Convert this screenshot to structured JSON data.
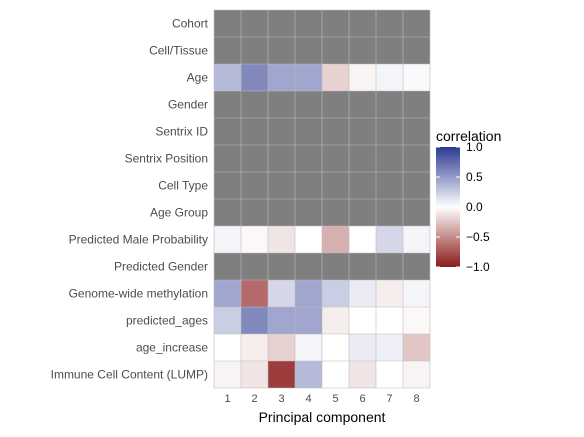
{
  "chart_data": {
    "type": "heatmap",
    "x_title": "Principal component",
    "x_ticks": [
      "1",
      "2",
      "3",
      "4",
      "5",
      "6",
      "7",
      "8"
    ],
    "y_labels": [
      "Cohort",
      "Cell/Tissue",
      "Age",
      "Gender",
      "Sentrix ID",
      "Sentrix Position",
      "Cell Type",
      "Age Group",
      "Predicted Male Probability",
      "Predicted Gender",
      "Genome-wide methylation",
      "predicted_ages",
      "age_increase",
      "Immune Cell Content (LUMP)"
    ],
    "values": [
      [
        null,
        null,
        null,
        null,
        null,
        null,
        null,
        null
      ],
      [
        null,
        null,
        null,
        null,
        null,
        null,
        null,
        null
      ],
      [
        0.35,
        0.6,
        0.45,
        0.45,
        -0.2,
        -0.05,
        0.05,
        0.03
      ],
      [
        null,
        null,
        null,
        null,
        null,
        null,
        null,
        null
      ],
      [
        null,
        null,
        null,
        null,
        null,
        null,
        null,
        null
      ],
      [
        null,
        null,
        null,
        null,
        null,
        null,
        null,
        null
      ],
      [
        null,
        null,
        null,
        null,
        null,
        null,
        null,
        null
      ],
      [
        null,
        null,
        null,
        null,
        null,
        null,
        null,
        null
      ],
      [
        0.05,
        -0.03,
        -0.12,
        0.0,
        -0.35,
        0.0,
        0.2,
        0.05
      ],
      [
        null,
        null,
        null,
        null,
        null,
        null,
        null,
        null
      ],
      [
        0.45,
        -0.65,
        0.2,
        0.45,
        0.25,
        0.1,
        -0.08,
        0.05
      ],
      [
        0.25,
        0.6,
        0.45,
        0.45,
        -0.08,
        0.0,
        0.0,
        -0.03
      ],
      [
        0.0,
        -0.08,
        -0.2,
        0.05,
        0.0,
        0.1,
        0.08,
        -0.25
      ],
      [
        -0.05,
        -0.12,
        -0.85,
        0.35,
        0.0,
        -0.12,
        0.0,
        -0.05
      ]
    ],
    "legend": {
      "title": "correlation",
      "ticks": [
        1.0,
        0.5,
        0.0,
        -0.5,
        -1.0
      ],
      "tick_labels": [
        "1.0",
        "0.5",
        "0.0",
        "−0.5",
        "−1.0"
      ],
      "range": [
        -1,
        1
      ],
      "low_color": "#8b1a1a",
      "mid_color": "#ffffff",
      "high_color": "#2b3990"
    },
    "na_color": "#7f7f7f",
    "grid": true
  }
}
